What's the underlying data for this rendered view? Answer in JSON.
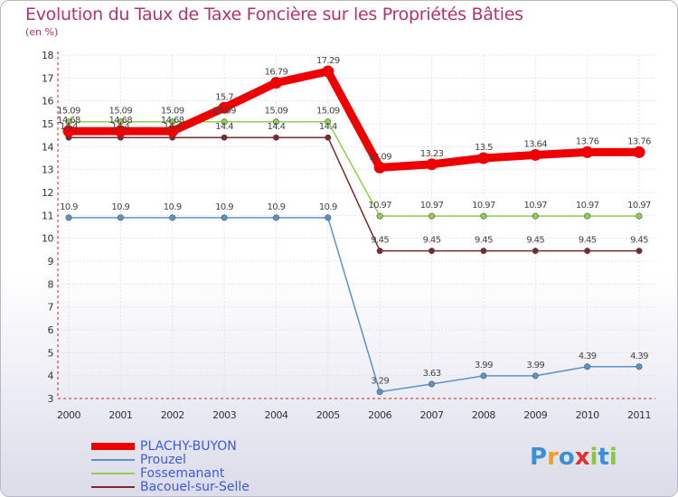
{
  "title": "Evolution du Taux de Taxe Foncière sur les Propriétés Bâties",
  "unit": "(en %)",
  "logo": {
    "letters": [
      "P",
      "r",
      "o",
      "x",
      "i",
      "t",
      "i"
    ],
    "colors": [
      "#3b8fd6",
      "#f0a020",
      "#3b8fd6",
      "#e03030",
      "#8cc63f",
      "#3b8fd6",
      "#8cc63f"
    ]
  },
  "chart_data": {
    "type": "line",
    "title": "Evolution du Taux de Taxe Foncière sur les Propriétés Bâties",
    "ylabel": "(en %)",
    "xlabel": "",
    "ylim": [
      3,
      18
    ],
    "yticks": [
      3,
      4,
      5,
      6,
      7,
      8,
      9,
      10,
      11,
      12,
      13,
      14,
      15,
      16,
      17,
      18
    ],
    "categories": [
      "2000",
      "2001",
      "2002",
      "2003",
      "2004",
      "2005",
      "2006",
      "2007",
      "2008",
      "2009",
      "2010",
      "2011"
    ],
    "series": [
      {
        "name": "PLACHY-BUYON",
        "color": "#ee0000",
        "values": [
          14.68,
          14.68,
          14.68,
          15.7,
          16.79,
          17.29,
          13.09,
          13.23,
          13.5,
          13.64,
          13.76,
          13.76
        ],
        "labels": [
          "14.68",
          "14.68",
          "14.68",
          "15.7",
          "16.79",
          "17.29",
          "13.09",
          "13.23",
          "13.5",
          "13.64",
          "13.76",
          "13.76"
        ]
      },
      {
        "name": "Prouzel",
        "color": "#5b93c8",
        "values": [
          10.9,
          10.9,
          10.9,
          10.9,
          10.9,
          10.9,
          3.29,
          3.63,
          3.99,
          3.99,
          4.39,
          4.39
        ],
        "labels": [
          "10.9",
          "10.9",
          "10.9",
          "10.9",
          "10.9",
          "10.9",
          "3.29",
          "3.63",
          "3.99",
          "3.99",
          "4.39",
          "4.39"
        ]
      },
      {
        "name": "Fossemanant",
        "color": "#90d050",
        "values": [
          15.09,
          15.09,
          15.09,
          15.09,
          15.09,
          15.09,
          10.97,
          10.97,
          10.97,
          10.97,
          10.97,
          10.97
        ],
        "labels": [
          "15.09",
          "15.09",
          "15.09",
          "15.09",
          "15.09",
          "15.09",
          "10.97",
          "10.97",
          "10.97",
          "10.97",
          "10.97",
          "10.97"
        ]
      },
      {
        "name": "Bacouel-sur-Selle",
        "color": "#7a2a2a",
        "values": [
          14.4,
          14.4,
          14.4,
          14.4,
          14.4,
          14.4,
          9.45,
          9.45,
          9.45,
          9.45,
          9.45,
          9.45
        ],
        "labels": [
          "14.4",
          "14.4",
          "14.4",
          "14.4",
          "14.4",
          "14.4",
          "9.45",
          "9.45",
          "9.45",
          "9.45",
          "9.45",
          "9.45"
        ]
      }
    ],
    "grid": true,
    "legend": "bottom-left"
  }
}
